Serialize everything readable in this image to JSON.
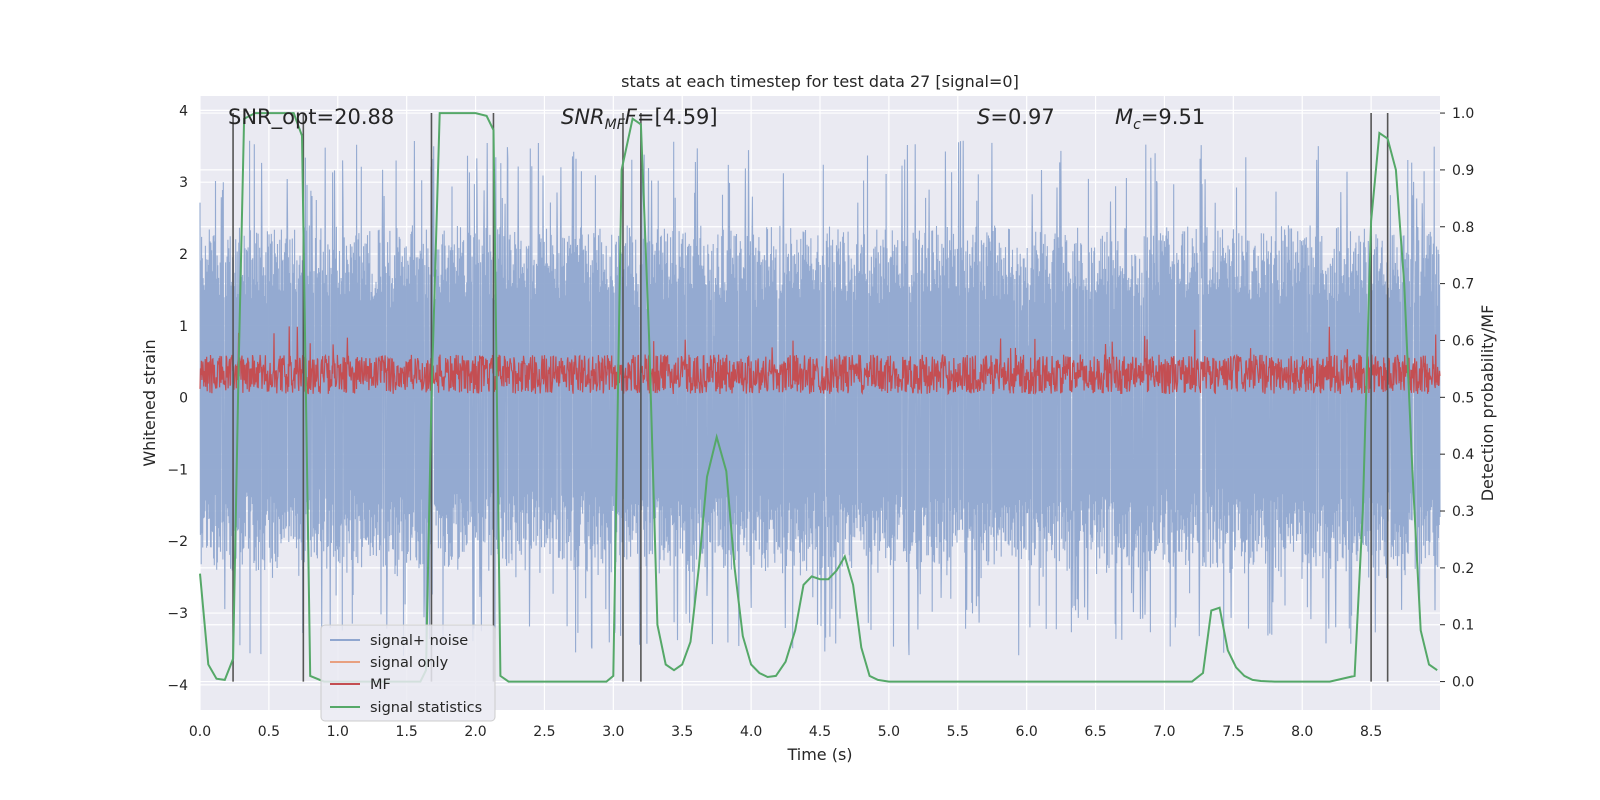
{
  "chart_data": {
    "type": "line",
    "title": "stats at each timestep for test data 27 [signal=0]",
    "xlabel": "Time (s)",
    "ylabel_left": "Whitened strain",
    "ylabel_right": "Detection probability/MF",
    "xlim": [
      0,
      9.0
    ],
    "ylim_left": [
      -4.35,
      4.2
    ],
    "ylim_right": [
      -0.05,
      1.03
    ],
    "x_ticks": [
      "0.0",
      "0.5",
      "1.0",
      "1.5",
      "2.0",
      "2.5",
      "3.0",
      "3.5",
      "4.0",
      "4.5",
      "5.0",
      "5.5",
      "6.0",
      "6.5",
      "7.0",
      "7.5",
      "8.0",
      "8.5"
    ],
    "y_left_ticks": [
      "−4",
      "−3",
      "−2",
      "−1",
      "0",
      "1",
      "2",
      "3",
      "4"
    ],
    "y_right_ticks": [
      "0.0",
      "0.1",
      "0.2",
      "0.3",
      "0.4",
      "0.5",
      "0.6",
      "0.7",
      "0.8",
      "0.9",
      "1.0"
    ],
    "grid": true,
    "legend_position": "lower-left",
    "annotations": {
      "snr_opt": "SNR_opt=20.88",
      "snr_mf_main": "SNR",
      "snr_mf_sub": "MF",
      "snr_mf_value": "=[4.59]",
      "s_symbol": "S",
      "s_value": "=0.97",
      "mc_main": "M",
      "mc_sub": "c",
      "mc_value": "=9.51"
    },
    "series": [
      {
        "name": "signal+ noise",
        "color": "#8fa6cf",
        "axis": "left",
        "envelope": [
          -2.0,
          2.4
        ],
        "peak_range": [
          -3.6,
          3.6
        ]
      },
      {
        "name": "signal only",
        "color": "#e8a080",
        "axis": "left",
        "x": [],
        "y": []
      },
      {
        "name": "MF",
        "color": "#c44e52",
        "axis": "left",
        "envelope": [
          0.05,
          0.6
        ],
        "peak_range": [
          0.0,
          1.0
        ]
      },
      {
        "name": "signal statistics",
        "color": "#55a868",
        "axis": "right",
        "x": [
          0.0,
          0.06,
          0.12,
          0.18,
          0.24,
          0.28,
          0.32,
          0.4,
          0.5,
          0.6,
          0.68,
          0.74,
          0.8,
          0.9,
          1.0,
          1.2,
          1.4,
          1.6,
          1.64,
          1.68,
          1.74,
          1.8,
          1.9,
          2.0,
          2.08,
          2.13,
          2.18,
          2.24,
          2.4,
          2.6,
          2.8,
          2.95,
          3.0,
          3.06,
          3.14,
          3.2,
          3.26,
          3.32,
          3.38,
          3.44,
          3.5,
          3.56,
          3.62,
          3.68,
          3.75,
          3.82,
          3.88,
          3.94,
          4.0,
          4.06,
          4.12,
          4.18,
          4.25,
          4.32,
          4.38,
          4.44,
          4.5,
          4.56,
          4.62,
          4.68,
          4.74,
          4.8,
          4.86,
          4.92,
          5.0,
          5.5,
          6.0,
          6.5,
          7.0,
          7.2,
          7.28,
          7.34,
          7.4,
          7.46,
          7.52,
          7.58,
          7.64,
          7.7,
          7.8,
          8.0,
          8.2,
          8.38,
          8.44,
          8.5,
          8.56,
          8.62,
          8.68,
          8.74,
          8.8,
          8.86,
          8.92,
          8.98
        ],
        "y": [
          0.19,
          0.03,
          0.005,
          0.003,
          0.04,
          0.55,
          0.99,
          1.0,
          1.0,
          1.0,
          1.0,
          0.96,
          0.01,
          0.0,
          0.0,
          0.0,
          0.0,
          0.0,
          0.02,
          0.5,
          1.0,
          1.0,
          1.0,
          1.0,
          0.995,
          0.97,
          0.01,
          0.0,
          0.0,
          0.0,
          0.0,
          0.0,
          0.01,
          0.9,
          0.99,
          0.98,
          0.6,
          0.1,
          0.03,
          0.02,
          0.03,
          0.07,
          0.2,
          0.36,
          0.43,
          0.37,
          0.2,
          0.08,
          0.03,
          0.015,
          0.008,
          0.01,
          0.035,
          0.09,
          0.17,
          0.185,
          0.18,
          0.18,
          0.195,
          0.22,
          0.17,
          0.06,
          0.01,
          0.003,
          0.0,
          0.0,
          0.0,
          0.0,
          0.0,
          0.0,
          0.015,
          0.125,
          0.13,
          0.055,
          0.025,
          0.01,
          0.003,
          0.001,
          0.0,
          0.0,
          0.0,
          0.01,
          0.3,
          0.81,
          0.965,
          0.955,
          0.9,
          0.7,
          0.37,
          0.09,
          0.03,
          0.02
        ]
      }
    ],
    "vertical_lines_x": [
      0.24,
      0.75,
      1.68,
      2.13,
      3.07,
      3.2,
      8.5,
      8.62
    ]
  }
}
